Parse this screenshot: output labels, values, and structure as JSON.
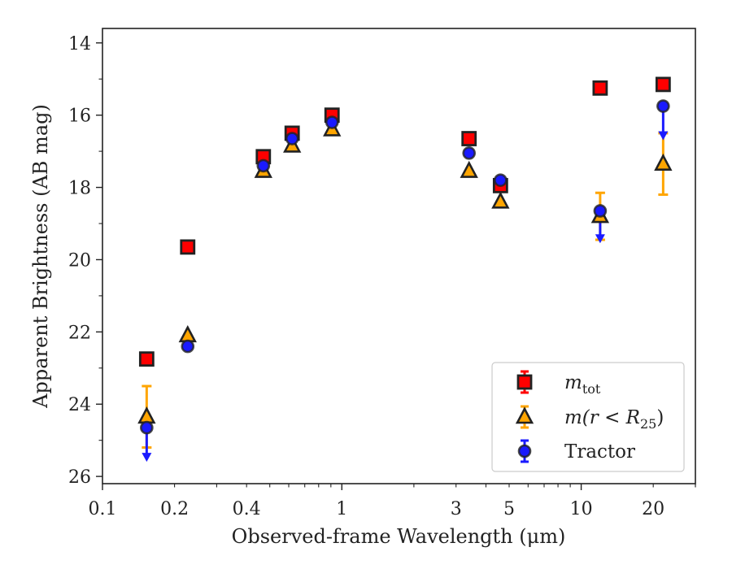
{
  "chart_data": {
    "type": "scatter",
    "xlabel": "Observed-frame Wavelength (μm)",
    "ylabel": "Apparent Brightness (AB mag)",
    "x_scale": "log",
    "xlim": [
      0.1,
      30
    ],
    "ylim": [
      26.2,
      13.6
    ],
    "y_inverted": true,
    "x_ticks": [
      {
        "value": 0.1,
        "label": "0.1"
      },
      {
        "value": 0.2,
        "label": "0.2"
      },
      {
        "value": 0.4,
        "label": "0.4"
      },
      {
        "value": 1,
        "label": "1"
      },
      {
        "value": 3,
        "label": "3"
      },
      {
        "value": 5,
        "label": "5"
      },
      {
        "value": 10,
        "label": "10"
      },
      {
        "value": 20,
        "label": "20"
      }
    ],
    "y_ticks": [
      {
        "value": 14,
        "label": "14"
      },
      {
        "value": 16,
        "label": "16"
      },
      {
        "value": 18,
        "label": "18"
      },
      {
        "value": 20,
        "label": "20"
      },
      {
        "value": 22,
        "label": "22"
      },
      {
        "value": 24,
        "label": "24"
      },
      {
        "value": 26,
        "label": "26"
      }
    ],
    "legend_position": "bottom-right",
    "series": [
      {
        "name": "m_tot",
        "legend_main": "m",
        "legend_sub": "tot",
        "marker": "square",
        "color": "#ff0000",
        "edge_color": "#222222",
        "points": [
          {
            "x": 0.153,
            "y": 22.75
          },
          {
            "x": 0.227,
            "y": 19.65
          },
          {
            "x": 0.47,
            "y": 17.15
          },
          {
            "x": 0.62,
            "y": 16.5
          },
          {
            "x": 0.91,
            "y": 16.0
          },
          {
            "x": 3.4,
            "y": 16.65
          },
          {
            "x": 4.6,
            "y": 17.95
          },
          {
            "x": 12.0,
            "y": 15.25
          },
          {
            "x": 22.0,
            "y": 15.15
          }
        ]
      },
      {
        "name": "m(r < R_25)",
        "legend_main": "m(r < R",
        "legend_sub": "25",
        "legend_tail": ")",
        "marker": "triangle",
        "color": "#ffa500",
        "edge_color": "#222222",
        "points": [
          {
            "x": 0.153,
            "y": 24.35,
            "err_low": 0.85,
            "err_high": 0.85
          },
          {
            "x": 0.227,
            "y": 22.1
          },
          {
            "x": 0.47,
            "y": 17.55
          },
          {
            "x": 0.62,
            "y": 16.85
          },
          {
            "x": 0.91,
            "y": 16.4
          },
          {
            "x": 3.4,
            "y": 17.55
          },
          {
            "x": 4.6,
            "y": 18.4
          },
          {
            "x": 12.0,
            "y": 18.8,
            "err_low": 0.65,
            "err_high": 0.65
          },
          {
            "x": 22.0,
            "y": 17.35,
            "err_low": 0.85,
            "err_high": 0.85
          }
        ]
      },
      {
        "name": "Tractor",
        "marker": "circle",
        "color": "#1a1aff",
        "edge_color": "#222222",
        "points": [
          {
            "x": 0.153,
            "y": 24.65,
            "upper_limit": true,
            "arrow_to": 25.55
          },
          {
            "x": 0.227,
            "y": 22.4
          },
          {
            "x": 0.47,
            "y": 17.4
          },
          {
            "x": 0.62,
            "y": 16.65
          },
          {
            "x": 0.91,
            "y": 16.2
          },
          {
            "x": 3.4,
            "y": 17.05
          },
          {
            "x": 4.6,
            "y": 17.8
          },
          {
            "x": 12.0,
            "y": 18.65,
            "upper_limit": true,
            "arrow_to": 19.5
          },
          {
            "x": 22.0,
            "y": 15.75,
            "upper_limit": true,
            "arrow_to": 16.65
          }
        ]
      }
    ]
  }
}
